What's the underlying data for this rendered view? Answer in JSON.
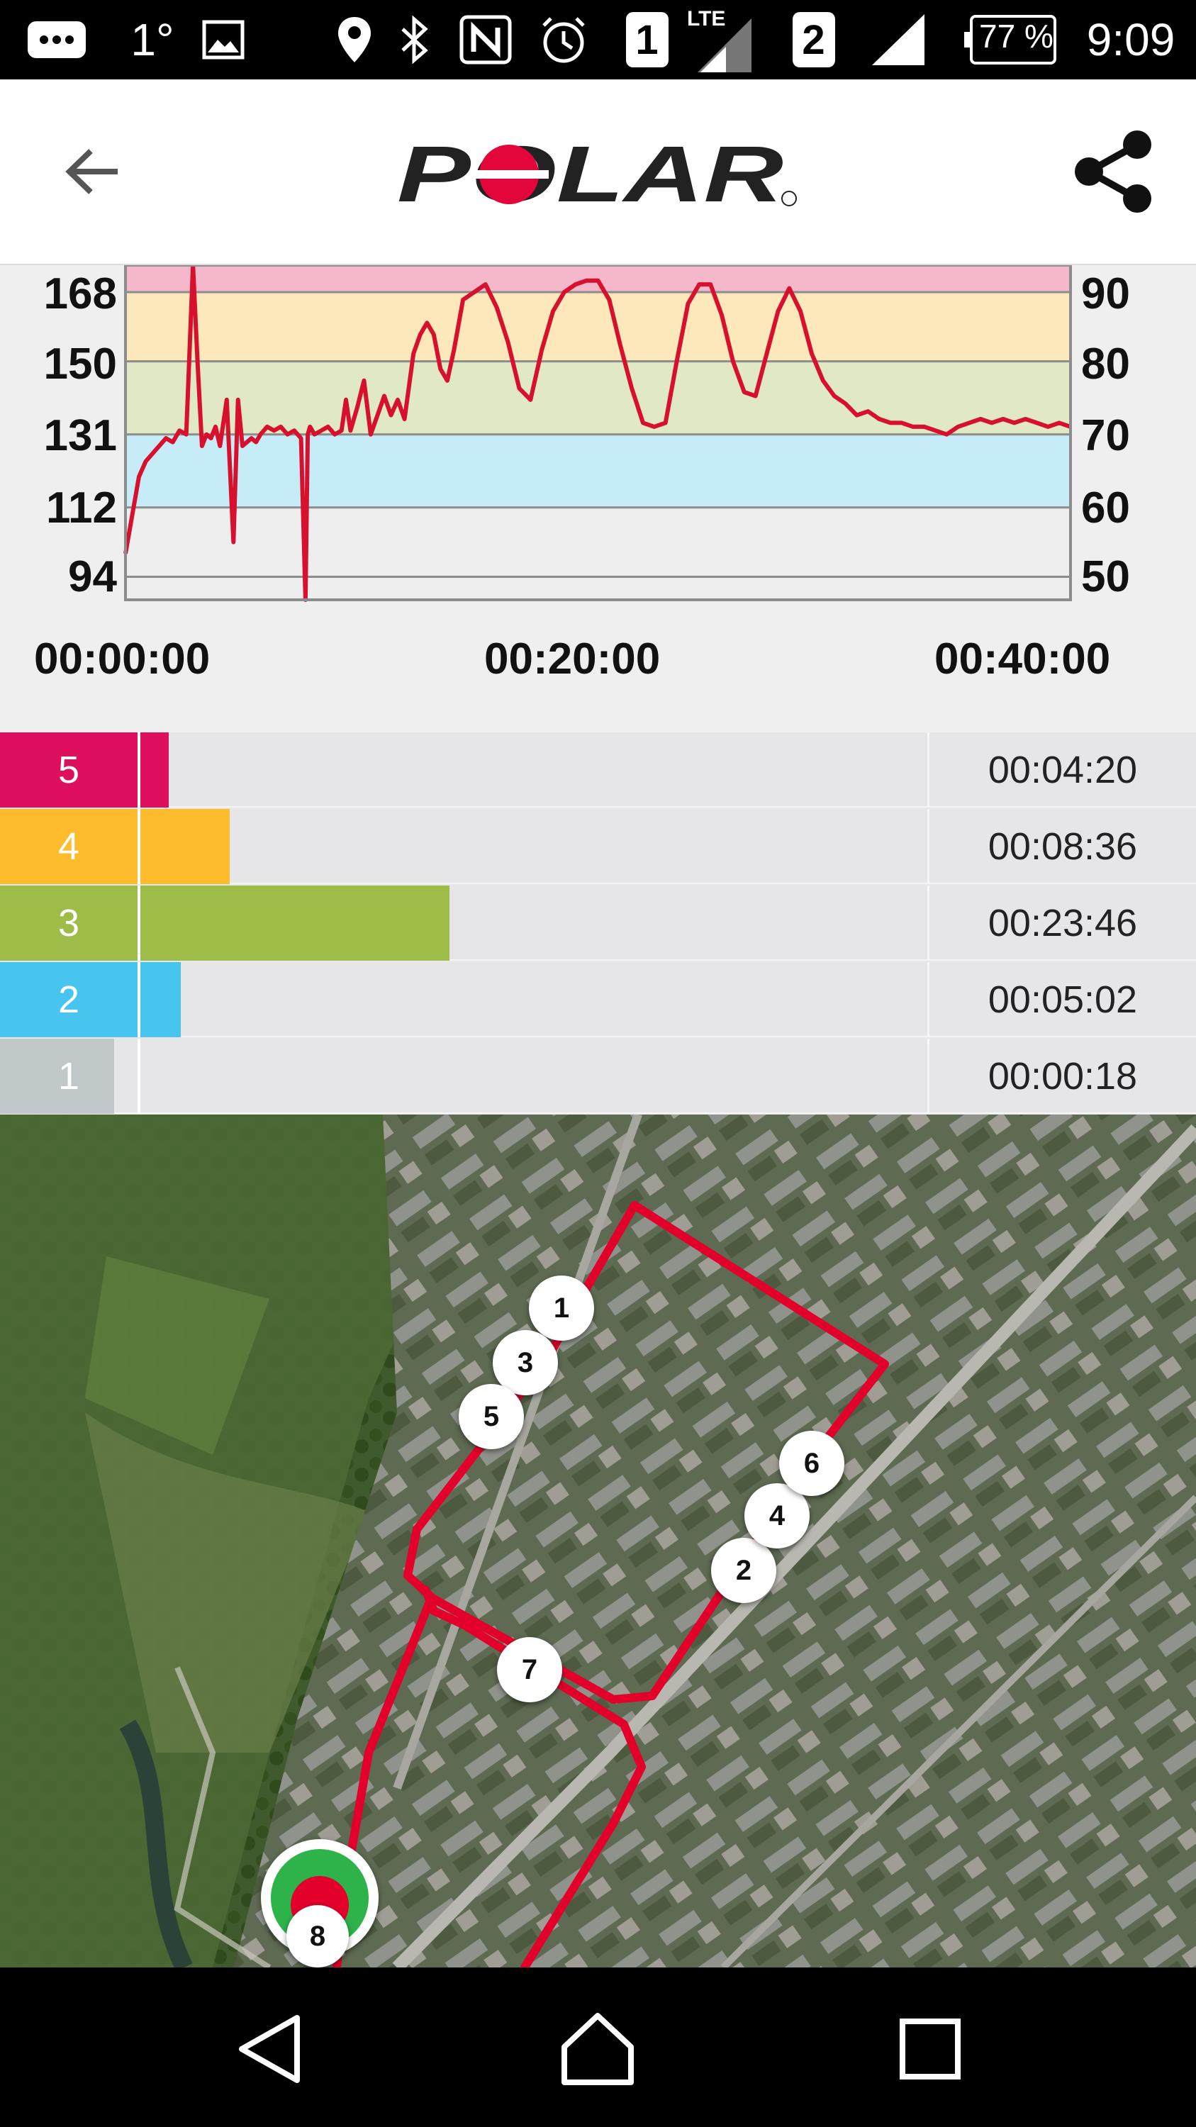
{
  "status_bar": {
    "temperature": "1°",
    "sim1": "1",
    "network": "LTE",
    "sim2": "2",
    "battery": "77 %",
    "time": "9:09",
    "icons": [
      "message-icon",
      "gallery-icon",
      "location-icon",
      "bluetooth-icon",
      "nfc-icon",
      "alarm-icon",
      "signal-icon",
      "battery-icon"
    ]
  },
  "app_bar": {
    "back_icon": "arrow-left-icon",
    "logo_text": "POLAR",
    "share_icon": "share-icon"
  },
  "chart_data": {
    "type": "line",
    "left_axis_ticks": [
      "168",
      "150",
      "131",
      "112",
      "94"
    ],
    "right_axis_ticks": [
      "90",
      "80",
      "70",
      "60",
      "50"
    ],
    "x_ticks": [
      "00:00:00",
      "00:20:00",
      "00:40:00"
    ],
    "ylim": [
      88,
      175
    ],
    "xlim_minutes": [
      0,
      42
    ],
    "zone_bands": [
      {
        "zone": 5,
        "from": 168,
        "to": 175,
        "color": "#f5b8cb"
      },
      {
        "zone": 4,
        "from": 150,
        "to": 168,
        "color": "#fce8ba"
      },
      {
        "zone": 3,
        "from": 131,
        "to": 150,
        "color": "#e1e8c4"
      },
      {
        "zone": 2,
        "from": 112,
        "to": 131,
        "color": "#c6ecf7"
      },
      {
        "zone": 1,
        "from": 88,
        "to": 112,
        "color": "#eeeeee"
      }
    ],
    "series": [
      {
        "color": "#d7102e",
        "x": [
          0,
          0.3,
          0.6,
          0.9,
          1.2,
          1.5,
          1.8,
          2.1,
          2.4,
          2.7,
          3.0,
          3.2,
          3.4,
          3.6,
          3.8,
          4.0,
          4.2,
          4.5,
          4.8,
          5.0,
          5.2,
          5.4,
          5.6,
          5.8,
          6.0,
          6.3,
          6.6,
          6.9,
          7.2,
          7.5,
          7.8,
          8.0,
          8.1,
          8.2,
          8.4,
          8.7,
          9.0,
          9.3,
          9.6,
          9.8,
          10.0,
          10.3,
          10.6,
          10.9,
          11.2,
          11.5,
          11.8,
          12.1,
          12.4,
          12.8,
          13.1,
          13.4,
          13.7,
          14.0,
          14.3,
          14.6,
          15.0,
          15.5,
          16.0,
          16.5,
          17.0,
          17.5,
          18.0,
          18.5,
          19.0,
          19.5,
          20.0,
          20.5,
          21.0,
          21.5,
          22.0,
          22.5,
          23.0,
          23.5,
          24.0,
          24.5,
          25.0,
          25.5,
          26.0,
          26.5,
          27.0,
          27.5,
          28.0,
          28.5,
          29.0,
          29.5,
          30.0,
          30.5,
          31.0,
          31.5,
          32.0,
          32.5,
          33.0,
          33.5,
          34.0,
          34.5,
          35.0,
          35.5,
          36.0,
          36.5,
          37.0,
          37.5,
          38.0,
          38.5,
          39.0,
          39.5,
          40.0,
          40.5,
          41.0,
          41.5,
          42.0
        ],
        "values": [
          100,
          110,
          120,
          124,
          126,
          128,
          130,
          129,
          132,
          131,
          175,
          150,
          128,
          131,
          130,
          133,
          128,
          140,
          103,
          140,
          128,
          129,
          130,
          129,
          131,
          133,
          132,
          133,
          131,
          132,
          130,
          88,
          131,
          133,
          131,
          132,
          133,
          131,
          132,
          140,
          132,
          138,
          145,
          131,
          136,
          141,
          136,
          140,
          135,
          152,
          157,
          160,
          157,
          148,
          145,
          153,
          166,
          168,
          170,
          164,
          155,
          143,
          140,
          153,
          163,
          168,
          170,
          171,
          171,
          166,
          154,
          143,
          134,
          133,
          134,
          150,
          165,
          170,
          170,
          162,
          150,
          142,
          141,
          152,
          163,
          169,
          163,
          152,
          145,
          141,
          139,
          136,
          137,
          135,
          134,
          134,
          133,
          133,
          132,
          131,
          133,
          134,
          135,
          134,
          135,
          134,
          135,
          134,
          133,
          134,
          133
        ]
      }
    ]
  },
  "zones": [
    {
      "zone": "5",
      "time": "00:04:20",
      "color": "#de0f5c",
      "fraction": 0.182
    },
    {
      "zone": "4",
      "time": "00:08:36",
      "color": "#fdbc2c",
      "fraction": 0.248
    },
    {
      "zone": "3",
      "time": "00:23:46",
      "color": "#9dbd48",
      "fraction": 0.485
    },
    {
      "zone": "2",
      "time": "00:05:02",
      "color": "#48c5ef",
      "fraction": 0.195
    },
    {
      "zone": "1",
      "time": "00:00:18",
      "color": "#c0c8c9",
      "fraction": 0.123
    }
  ],
  "map": {
    "route_color": "#e3002a",
    "laps": [
      "1",
      "2",
      "3",
      "4",
      "5",
      "6",
      "7",
      "8"
    ],
    "start_icon": "start-finish-icon"
  },
  "nav_bar": {
    "icons": [
      "nav-back-icon",
      "nav-home-icon",
      "nav-recents-icon"
    ]
  }
}
